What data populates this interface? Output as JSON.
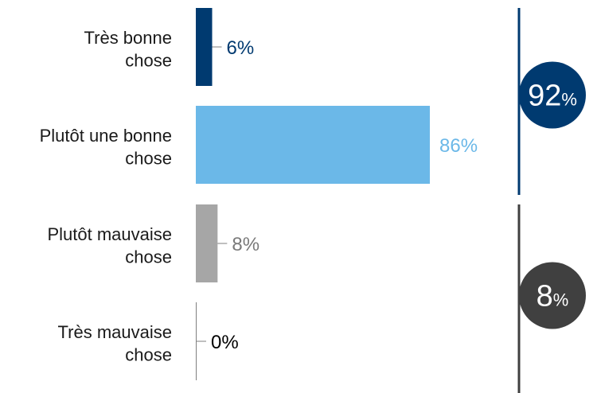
{
  "chart_data": {
    "type": "bar",
    "orientation": "horizontal",
    "categories": [
      [
        "Très bonne",
        "chose"
      ],
      [
        "Plutôt une bonne",
        "chose"
      ],
      [
        "Plutôt mauvaise",
        "chose"
      ],
      [
        "Très mauvaise",
        "chose"
      ]
    ],
    "values": [
      6,
      86,
      8,
      0
    ],
    "value_labels": [
      "6%",
      "86%",
      "8%",
      "0%"
    ],
    "colors": [
      "#003a70",
      "#6bb8e8",
      "#a6a6a6",
      "#7f7f7f"
    ],
    "label_colors": [
      "#003a70",
      "#6bb8e8",
      "#7a7a7a",
      "#000000"
    ],
    "xlim": [
      0,
      100
    ],
    "grid": false,
    "legend": "none",
    "totals": [
      {
        "number": "92",
        "unit": "%",
        "color": "#003a70",
        "covers": [
          0,
          1
        ]
      },
      {
        "number": "8",
        "unit": "%",
        "color": "#404040",
        "covers": [
          2,
          3
        ]
      }
    ]
  }
}
